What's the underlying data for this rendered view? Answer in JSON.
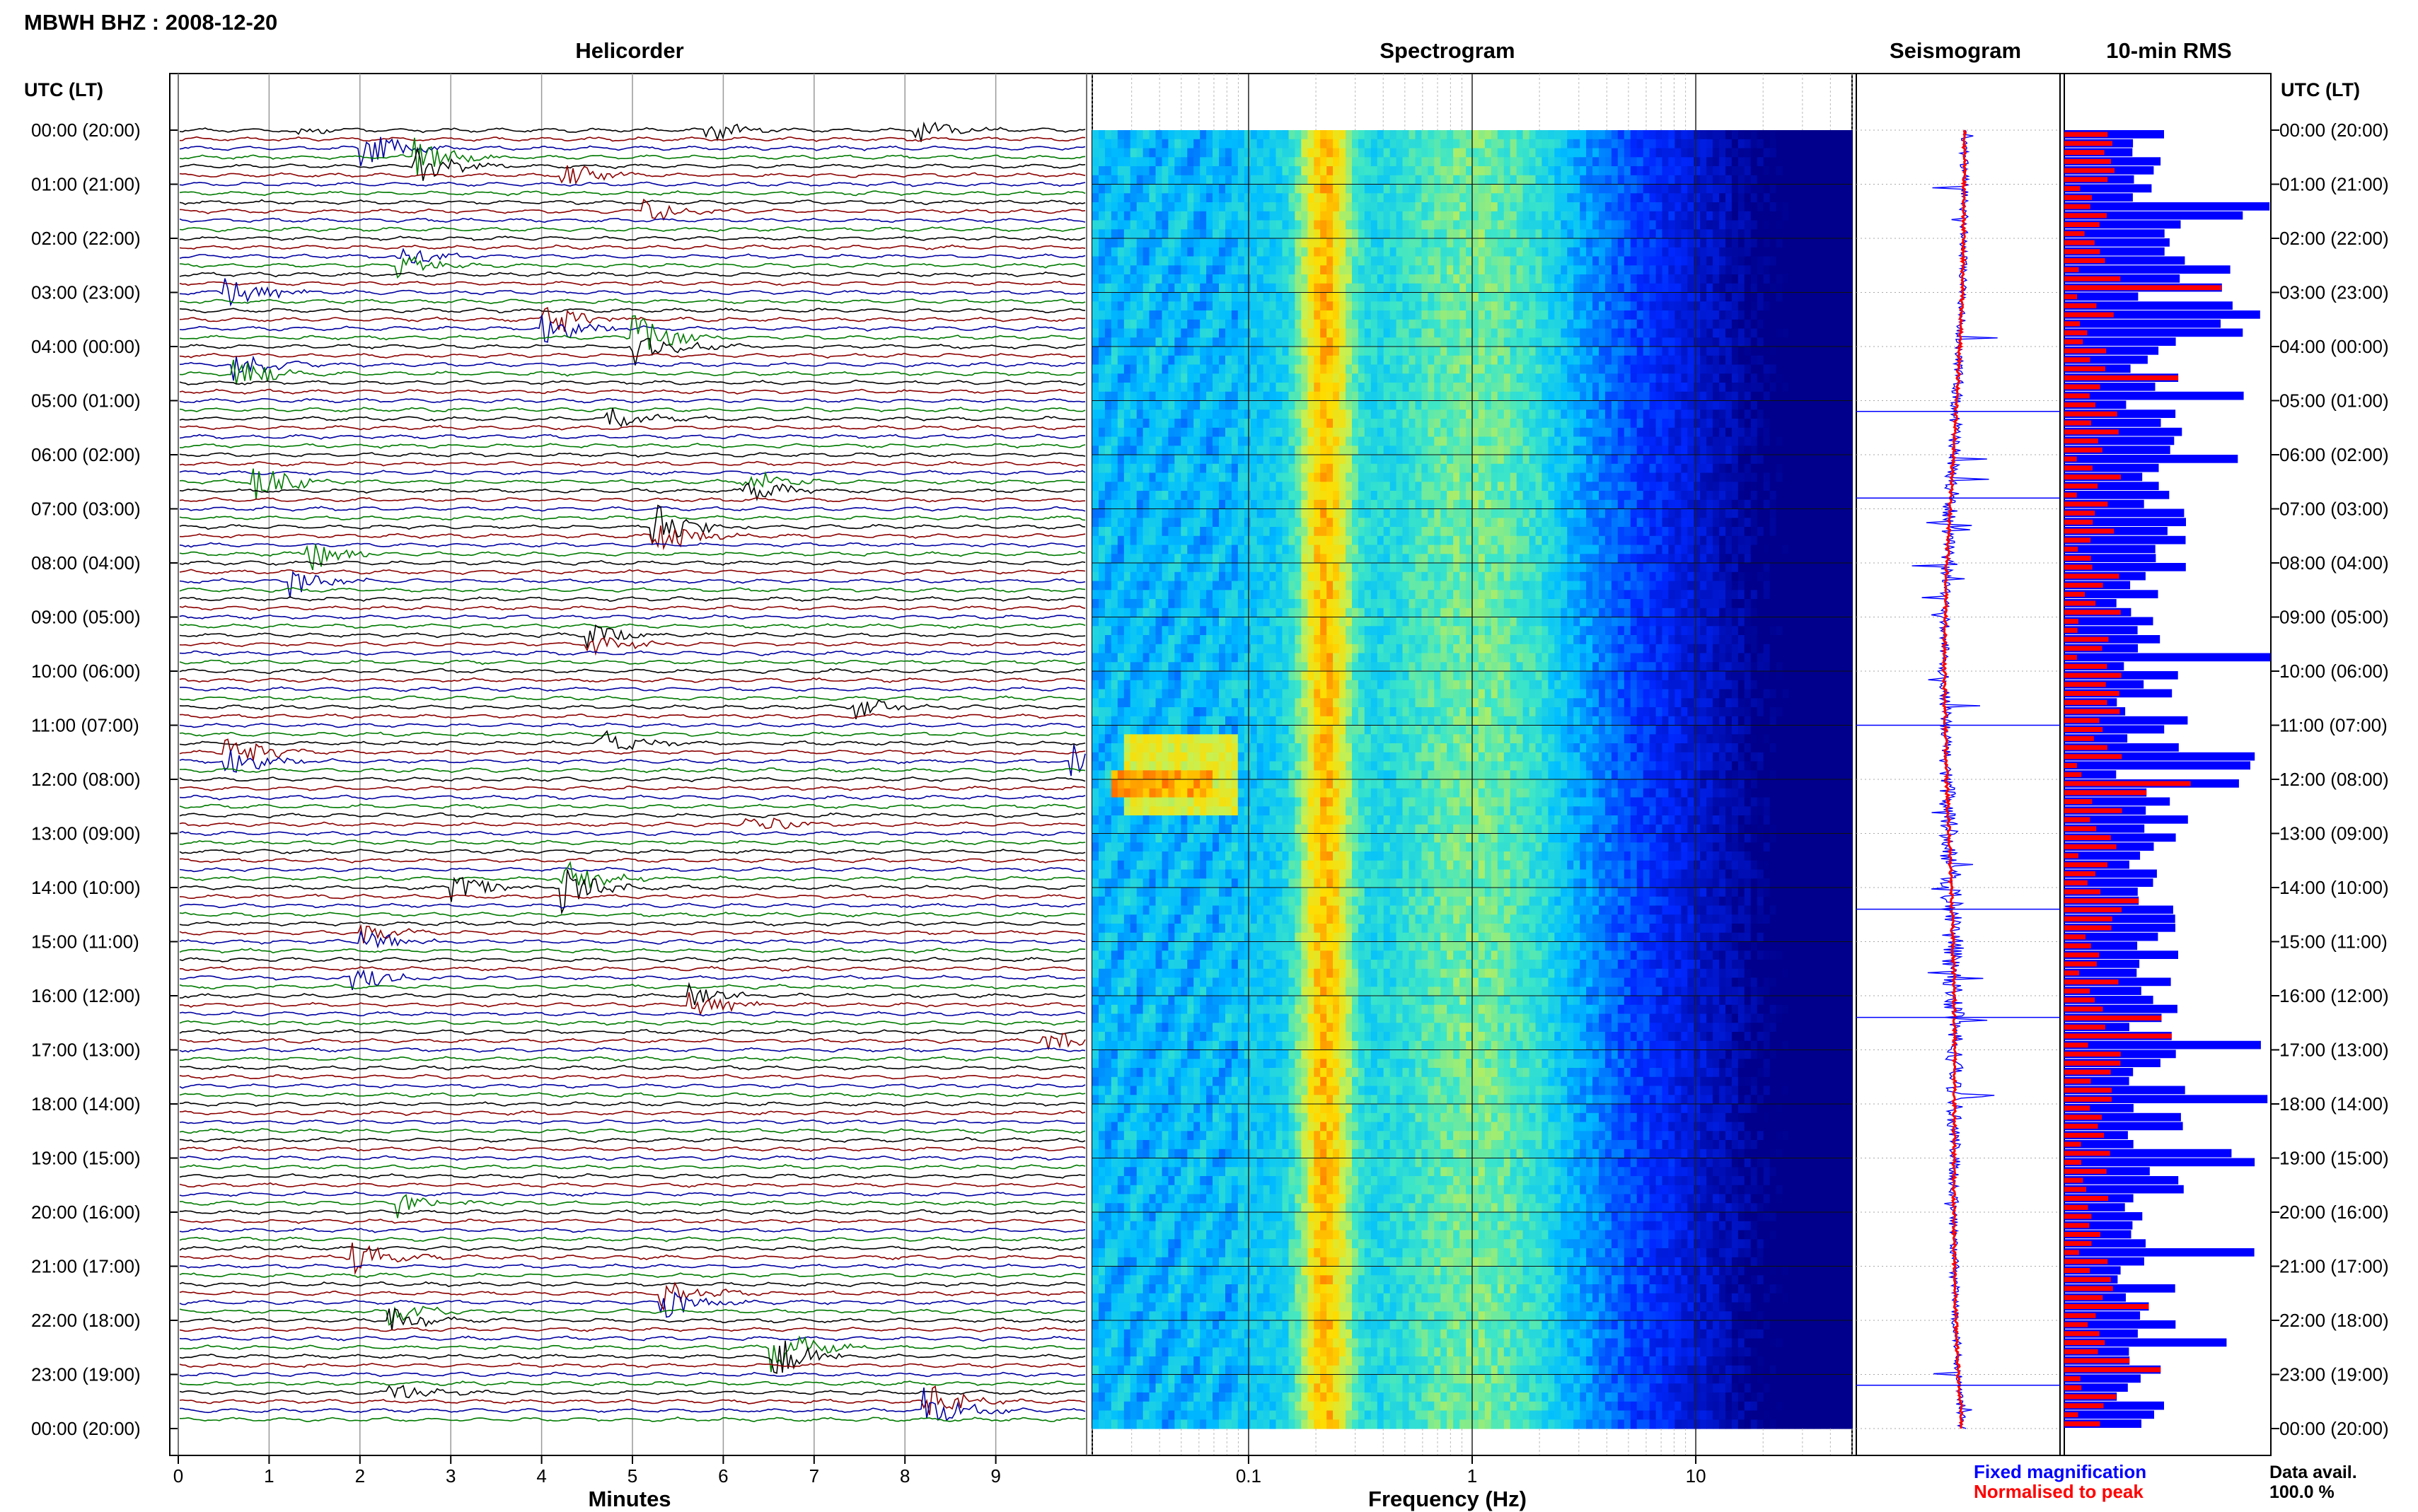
{
  "header": {
    "station_title": "MBWH BHZ : 2008-12-20",
    "utc_header_left": "UTC (LT)",
    "utc_header_right": "UTC (LT)"
  },
  "panels": {
    "helicorder": {
      "title": "Helicorder",
      "xlabel": "Minutes"
    },
    "spectrogram": {
      "title": "Spectrogram",
      "xlabel": "Frequency (Hz)"
    },
    "seismogram": {
      "title": "Seismogram"
    },
    "rms": {
      "title": "10-min RMS"
    }
  },
  "time_labels": [
    "00:00 (20:00)",
    "01:00 (21:00)",
    "02:00 (22:00)",
    "03:00 (23:00)",
    "04:00 (00:00)",
    "05:00 (01:00)",
    "06:00 (02:00)",
    "07:00 (03:00)",
    "08:00 (04:00)",
    "09:00 (05:00)",
    "10:00 (06:00)",
    "11:00 (07:00)",
    "12:00 (08:00)",
    "13:00 (09:00)",
    "14:00 (10:00)",
    "15:00 (11:00)",
    "16:00 (12:00)",
    "17:00 (13:00)",
    "18:00 (14:00)",
    "19:00 (15:00)",
    "20:00 (16:00)",
    "21:00 (17:00)",
    "22:00 (18:00)",
    "23:00 (19:00)",
    "00:00 (20:00)"
  ],
  "legend": {
    "fixed_magnification": "Fixed magnification",
    "normalised_to_peak": "Normalised to peak",
    "data_avail_label": "Data avail.",
    "data_avail_value": "100.0 %"
  },
  "colors": {
    "helicorder_traces": [
      "#000000",
      "#8b0000",
      "#0000a0",
      "#007a00"
    ],
    "fixed_magnification": "#0000ff",
    "normalised_to_peak": "#ff0000",
    "rms_bars_fixed": "#0000ff",
    "rms_bars_normalised": "#ff0000"
  },
  "chart_data": [
    {
      "type": "line",
      "title": "Helicorder",
      "xlabel": "Minutes",
      "ylabel": "UTC (LT)",
      "x_ticks": [
        "0",
        "1",
        "2",
        "3",
        "4",
        "5",
        "6",
        "7",
        "8",
        "9"
      ],
      "xlim": [
        0,
        10
      ],
      "lines_per_hour": 6,
      "hours": 24,
      "events": [
        {
          "hour": 0.0,
          "minute": 1.2,
          "amp": 0.7
        },
        {
          "hour": 0.0,
          "minute": 5.8,
          "amp": 1.3
        },
        {
          "hour": 0.0,
          "minute": 8.1,
          "amp": 1.6
        },
        {
          "hour": 0.3,
          "minute": 2.0,
          "amp": 2.4
        },
        {
          "hour": 0.6,
          "minute": 2.6,
          "amp": 2.2
        },
        {
          "hour": 0.8,
          "minute": 4.2,
          "amp": 1.8
        },
        {
          "hour": 1.5,
          "minute": 5.1,
          "amp": 1.6
        },
        {
          "hour": 2.4,
          "minute": 2.4,
          "amp": 1.5
        },
        {
          "hour": 3.0,
          "minute": 0.4,
          "amp": 2.6
        },
        {
          "hour": 3.6,
          "minute": 4.0,
          "amp": 2.4
        },
        {
          "hour": 3.9,
          "minute": 5.0,
          "amp": 2.8
        },
        {
          "hour": 4.4,
          "minute": 0.6,
          "amp": 2.2
        },
        {
          "hour": 5.3,
          "minute": 4.7,
          "amp": 1.6
        },
        {
          "hour": 6.5,
          "minute": 0.8,
          "amp": 2.6
        },
        {
          "hour": 6.6,
          "minute": 6.2,
          "amp": 1.8
        },
        {
          "hour": 7.4,
          "minute": 5.2,
          "amp": 3.0
        },
        {
          "hour": 7.8,
          "minute": 1.4,
          "amp": 2.0
        },
        {
          "hour": 8.3,
          "minute": 1.2,
          "amp": 1.8
        },
        {
          "hour": 9.4,
          "minute": 4.5,
          "amp": 1.4
        },
        {
          "hour": 10.7,
          "minute": 7.4,
          "amp": 1.6
        },
        {
          "hour": 11.3,
          "minute": 4.6,
          "amp": 2.0
        },
        {
          "hour": 11.6,
          "minute": 0.5,
          "amp": 2.4
        },
        {
          "hour": 11.7,
          "minute": 9.8,
          "amp": 2.6
        },
        {
          "hour": 12.8,
          "minute": 6.2,
          "amp": 1.5
        },
        {
          "hour": 13.9,
          "minute": 4.2,
          "amp": 2.8
        },
        {
          "hour": 14.0,
          "minute": 3.0,
          "amp": 1.8
        },
        {
          "hour": 14.9,
          "minute": 2.0,
          "amp": 1.6
        },
        {
          "hour": 15.7,
          "minute": 1.9,
          "amp": 2.0
        },
        {
          "hour": 16.1,
          "minute": 5.6,
          "amp": 1.6
        },
        {
          "hour": 16.8,
          "minute": 9.5,
          "amp": 1.6
        },
        {
          "hour": 19.8,
          "minute": 2.4,
          "amp": 1.4
        },
        {
          "hour": 20.8,
          "minute": 1.9,
          "amp": 2.0
        },
        {
          "hour": 21.6,
          "minute": 5.3,
          "amp": 2.0
        },
        {
          "hour": 21.9,
          "minute": 2.3,
          "amp": 1.6
        },
        {
          "hour": 22.6,
          "minute": 6.5,
          "amp": 3.2
        },
        {
          "hour": 23.3,
          "minute": 2.3,
          "amp": 1.4
        },
        {
          "hour": 23.6,
          "minute": 8.2,
          "amp": 2.4
        }
      ]
    },
    {
      "type": "heatmap",
      "title": "Spectrogram",
      "xlabel": "Frequency (Hz)",
      "x_scale": "log",
      "x_ticks": [
        "0.1",
        "1",
        "10"
      ],
      "xlim": [
        0.02,
        50
      ],
      "hours": 24
    },
    {
      "type": "line",
      "title": "Seismogram",
      "series": [
        {
          "name": "Fixed magnification"
        },
        {
          "name": "Normalised to peak"
        }
      ],
      "hours": 24
    },
    {
      "type": "bar",
      "title": "10-min RMS",
      "orientation": "horizontal",
      "bins": 144,
      "series": [
        {
          "name": "Fixed magnification"
        },
        {
          "name": "Normalised to peak"
        }
      ]
    }
  ]
}
